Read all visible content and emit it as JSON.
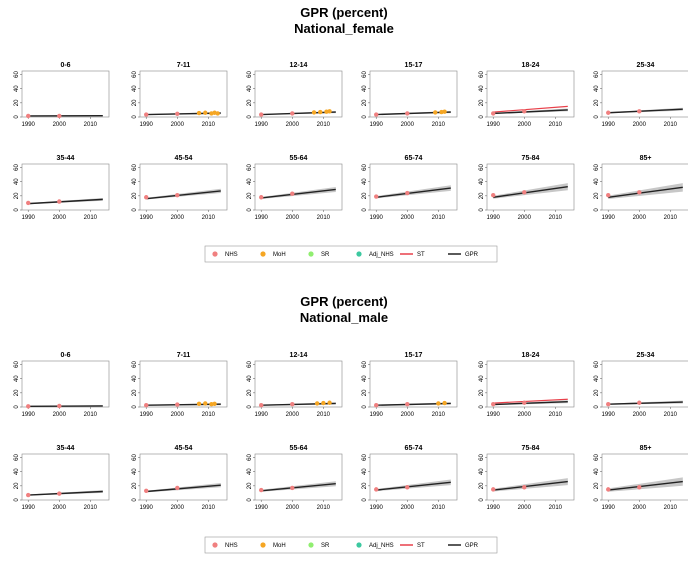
{
  "colors": {
    "NHS": "#f08080",
    "MoH": "#f5a623",
    "SR": "#90ee70",
    "Adj_NHS": "#3cc8a0",
    "ST": "#e8404a",
    "GPR": "#222222",
    "band": "#bdbdbd"
  },
  "legend": [
    "NHS",
    "MoH",
    "SR",
    "Adj_NHS",
    "ST",
    "GPR"
  ],
  "chart_data": [
    {
      "type": "line",
      "title": "GPR (percent)",
      "subtitle": "National_female",
      "x_ticks": [
        1990,
        2000,
        2010
      ],
      "y_ticks": [
        0,
        20,
        40,
        60
      ],
      "xlim": [
        1988,
        2016
      ],
      "ylim": [
        0,
        65
      ],
      "panels": [
        {
          "label": "0-6",
          "gpr": [
            1.5,
            1.8
          ],
          "band": 1,
          "st": null,
          "points": [
            [
              1990,
              1.5,
              "NHS"
            ],
            [
              2000,
              1.5,
              "NHS"
            ]
          ]
        },
        {
          "label": "7-11",
          "gpr": [
            3.5,
            5.5
          ],
          "band": 1.5,
          "st": null,
          "points": [
            [
              1990,
              3.5,
              "NHS"
            ],
            [
              2000,
              4.5,
              "NHS"
            ],
            [
              2007,
              5.5,
              "MoH"
            ],
            [
              2009,
              6,
              "MoH"
            ],
            [
              2011,
              5,
              "MoH"
            ],
            [
              2012,
              6,
              "MoH"
            ],
            [
              2013,
              5,
              "MoH"
            ]
          ]
        },
        {
          "label": "12-14",
          "gpr": [
            3.5,
            7
          ],
          "band": 1.5,
          "st": null,
          "points": [
            [
              1990,
              3.5,
              "NHS"
            ],
            [
              2000,
              5,
              "NHS"
            ],
            [
              2007,
              6.5,
              "MoH"
            ],
            [
              2009,
              7,
              "MoH"
            ],
            [
              2011,
              7.5,
              "MoH"
            ],
            [
              2012,
              8,
              "MoH"
            ]
          ]
        },
        {
          "label": "15-17",
          "gpr": [
            3.5,
            7
          ],
          "band": 1.5,
          "st": null,
          "points": [
            [
              1990,
              3.5,
              "NHS"
            ],
            [
              2000,
              5,
              "NHS"
            ],
            [
              2009,
              6.5,
              "MoH"
            ],
            [
              2011,
              7,
              "MoH"
            ],
            [
              2012,
              7.5,
              "MoH"
            ]
          ]
        },
        {
          "label": "18-24",
          "gpr": [
            5,
            10
          ],
          "band": 2,
          "st": [
            7,
            15
          ],
          "points": [
            [
              1990,
              5,
              "NHS"
            ],
            [
              2000,
              8,
              "NHS"
            ]
          ]
        },
        {
          "label": "25-34",
          "gpr": [
            6,
            11
          ],
          "band": 2,
          "st": null,
          "points": [
            [
              1990,
              6,
              "NHS"
            ],
            [
              2000,
              8,
              "NHS"
            ]
          ]
        },
        {
          "label": "35-44",
          "gpr": [
            9,
            15
          ],
          "band": 2,
          "st": null,
          "points": [
            [
              1990,
              10,
              "NHS"
            ],
            [
              2000,
              12,
              "NHS"
            ]
          ]
        },
        {
          "label": "45-54",
          "gpr": [
            16,
            27
          ],
          "band": 3,
          "st": null,
          "points": [
            [
              1990,
              18,
              "NHS"
            ],
            [
              2000,
              21,
              "NHS"
            ]
          ]
        },
        {
          "label": "55-64",
          "gpr": [
            17,
            29
          ],
          "band": 3.5,
          "st": null,
          "points": [
            [
              1990,
              18,
              "NHS"
            ],
            [
              2000,
              23,
              "NHS"
            ]
          ]
        },
        {
          "label": "65-74",
          "gpr": [
            18,
            31
          ],
          "band": 4,
          "st": null,
          "points": [
            [
              1990,
              19,
              "NHS"
            ],
            [
              2000,
              24,
              "NHS"
            ]
          ]
        },
        {
          "label": "75-84",
          "gpr": [
            18,
            33
          ],
          "band": 5,
          "st": null,
          "points": [
            [
              1990,
              21,
              "NHS"
            ],
            [
              2000,
              25,
              "NHS"
            ]
          ]
        },
        {
          "label": "85+",
          "gpr": [
            18,
            32
          ],
          "band": 6,
          "st": null,
          "points": [
            [
              1990,
              21,
              "NHS"
            ],
            [
              2000,
              25,
              "NHS"
            ]
          ]
        }
      ]
    },
    {
      "type": "line",
      "title": "GPR (percent)",
      "subtitle": "National_male",
      "x_ticks": [
        1990,
        2000,
        2010
      ],
      "y_ticks": [
        0,
        20,
        40,
        60
      ],
      "xlim": [
        1988,
        2016
      ],
      "ylim": [
        0,
        65
      ],
      "panels": [
        {
          "label": "0-6",
          "gpr": [
            1,
            1.5
          ],
          "band": 1,
          "st": null,
          "points": [
            [
              1990,
              1,
              "NHS"
            ],
            [
              2000,
              1.5,
              "NHS"
            ]
          ]
        },
        {
          "label": "7-11",
          "gpr": [
            2.5,
            4
          ],
          "band": 1.5,
          "st": null,
          "points": [
            [
              1990,
              2.5,
              "NHS"
            ],
            [
              2000,
              3.5,
              "NHS"
            ],
            [
              2007,
              4.5,
              "MoH"
            ],
            [
              2009,
              5,
              "MoH"
            ],
            [
              2011,
              4,
              "MoH"
            ],
            [
              2012,
              4.5,
              "MoH"
            ]
          ]
        },
        {
          "label": "12-14",
          "gpr": [
            2.5,
            5
          ],
          "band": 1.5,
          "st": null,
          "points": [
            [
              1990,
              2.5,
              "NHS"
            ],
            [
              2000,
              4,
              "NHS"
            ],
            [
              2008,
              5,
              "MoH"
            ],
            [
              2010,
              5.5,
              "MoH"
            ],
            [
              2012,
              6,
              "MoH"
            ]
          ]
        },
        {
          "label": "15-17",
          "gpr": [
            2.5,
            5
          ],
          "band": 1.5,
          "st": null,
          "points": [
            [
              1990,
              2.5,
              "NHS"
            ],
            [
              2000,
              4,
              "NHS"
            ],
            [
              2010,
              5,
              "MoH"
            ],
            [
              2012,
              5.5,
              "MoH"
            ]
          ]
        },
        {
          "label": "18-24",
          "gpr": [
            3.5,
            7.5
          ],
          "band": 2,
          "st": [
            5.5,
            11
          ],
          "points": [
            [
              1990,
              4,
              "NHS"
            ],
            [
              2000,
              6,
              "NHS"
            ]
          ]
        },
        {
          "label": "25-34",
          "gpr": [
            4,
            7
          ],
          "band": 2,
          "st": null,
          "points": [
            [
              1990,
              4,
              "NHS"
            ],
            [
              2000,
              6,
              "NHS"
            ]
          ]
        },
        {
          "label": "35-44",
          "gpr": [
            7,
            12
          ],
          "band": 2,
          "st": null,
          "points": [
            [
              1990,
              7,
              "NHS"
            ],
            [
              2000,
              9,
              "NHS"
            ]
          ]
        },
        {
          "label": "45-54",
          "gpr": [
            12,
            21
          ],
          "band": 3,
          "st": null,
          "points": [
            [
              1990,
              13,
              "NHS"
            ],
            [
              2000,
              17,
              "NHS"
            ]
          ]
        },
        {
          "label": "55-64",
          "gpr": [
            13,
            23
          ],
          "band": 3.5,
          "st": null,
          "points": [
            [
              1990,
              14,
              "NHS"
            ],
            [
              2000,
              17,
              "NHS"
            ]
          ]
        },
        {
          "label": "65-74",
          "gpr": [
            14,
            25
          ],
          "band": 4,
          "st": null,
          "points": [
            [
              1990,
              15,
              "NHS"
            ],
            [
              2000,
              18,
              "NHS"
            ]
          ]
        },
        {
          "label": "75-84",
          "gpr": [
            14,
            26
          ],
          "band": 5,
          "st": null,
          "points": [
            [
              1990,
              15,
              "NHS"
            ],
            [
              2000,
              18,
              "NHS"
            ]
          ]
        },
        {
          "label": "85+",
          "gpr": [
            14,
            26
          ],
          "band": 6,
          "st": null,
          "points": [
            [
              1990,
              15,
              "NHS"
            ],
            [
              2000,
              18,
              "NHS"
            ]
          ]
        }
      ]
    }
  ]
}
